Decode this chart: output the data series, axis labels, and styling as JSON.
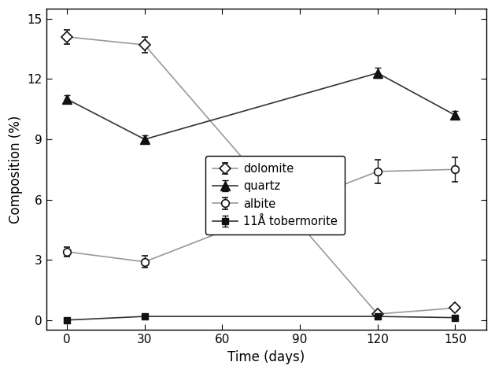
{
  "x": [
    0,
    30,
    120,
    150
  ],
  "dolomite": {
    "y": [
      14.1,
      13.7,
      0.3,
      0.6
    ],
    "yerr": [
      0.35,
      0.4,
      0.1,
      0.15
    ]
  },
  "quartz": {
    "y": [
      11.0,
      9.0,
      12.3,
      10.2
    ],
    "yerr": [
      0.2,
      0.2,
      0.25,
      0.2
    ]
  },
  "albite": {
    "y": [
      3.4,
      2.9,
      7.4,
      7.5
    ],
    "yerr": [
      0.25,
      0.3,
      0.6,
      0.6
    ]
  },
  "tobermorite": {
    "y": [
      0.0,
      0.18,
      0.18,
      0.12
    ],
    "yerr": [
      0.03,
      0.05,
      0.05,
      0.04
    ]
  },
  "xlabel": "Time (days)",
  "ylabel": "Composition (%)",
  "xlim": [
    -8,
    162
  ],
  "ylim": [
    -0.5,
    15.5
  ],
  "xticks": [
    0,
    30,
    60,
    90,
    120,
    150
  ],
  "yticks": [
    0,
    3,
    6,
    9,
    12,
    15
  ],
  "legend_labels": [
    "dolomite",
    "quartz",
    "albite",
    "11Å tobermorite"
  ],
  "line_color_gray": "#999999",
  "line_color_dark": "#333333",
  "marker_face_open": "#ffffff",
  "marker_face_dark": "#111111",
  "marker_edge_dark": "#111111",
  "figsize": [
    6.29,
    4.74
  ],
  "dpi": 100
}
